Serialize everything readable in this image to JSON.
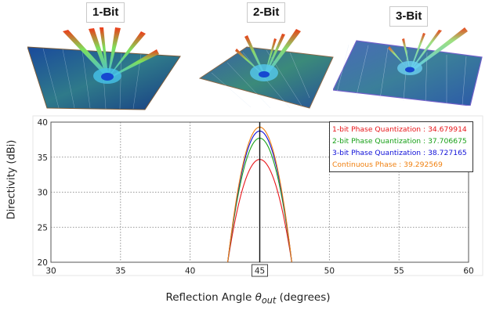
{
  "panels": [
    {
      "label": "1-Bit",
      "icon": "radiation-pattern-1bit"
    },
    {
      "label": "2-Bit",
      "icon": "radiation-pattern-2bit"
    },
    {
      "label": "3-Bit",
      "icon": "radiation-pattern-3bit"
    }
  ],
  "chart_data": {
    "type": "line",
    "xlabel_prefix": "Reflection Angle ",
    "xlabel_symbol": "θ",
    "xlabel_sub": "out",
    "xlabel_suffix": " (degrees)",
    "ylabel": "Directivity (dBi)",
    "xlim": [
      30,
      60
    ],
    "ylim": [
      20,
      40
    ],
    "x_ticks": [
      "30",
      "35",
      "40",
      "45",
      "50",
      "55",
      "60"
    ],
    "y_ticks": [
      "20",
      "25",
      "30",
      "35",
      "40"
    ],
    "highlighted_x_tick": "45",
    "grid": true,
    "legend_position": "top-right",
    "marker_line_x": 45,
    "series": [
      {
        "name": "1-bit Phase Quantization : 34.679914",
        "color": "#e8171b",
        "peak_x": 45,
        "peak_y": 34.68,
        "x_at_20": [
          42.8,
          47.3
        ]
      },
      {
        "name": "2-bit Phase Quantization : 37.706675",
        "color": "#18a018",
        "peak_x": 45,
        "peak_y": 37.71,
        "x_at_20": [
          42.8,
          47.3
        ]
      },
      {
        "name": "3-bit Phase Quantization : 38.727165",
        "color": "#1010d8",
        "peak_x": 45,
        "peak_y": 38.73,
        "x_at_20": [
          42.8,
          47.3
        ]
      },
      {
        "name": "Continuous Phase : 39.292569",
        "color": "#f08010",
        "peak_x": 45,
        "peak_y": 39.29,
        "x_at_20": [
          42.8,
          47.3
        ]
      }
    ]
  }
}
